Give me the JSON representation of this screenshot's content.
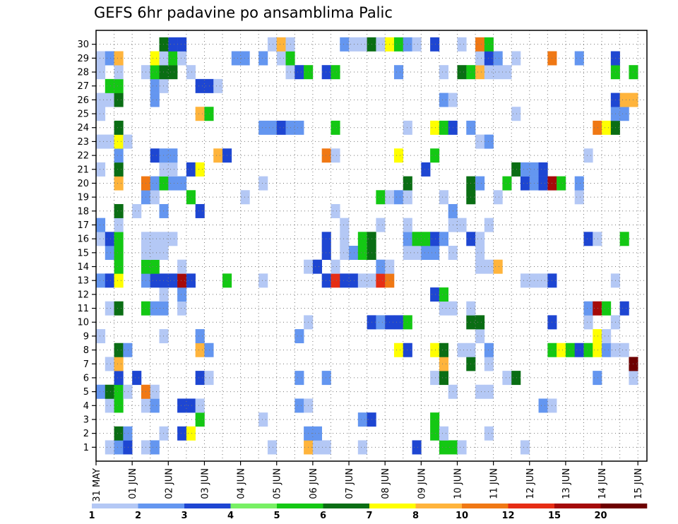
{
  "title": "GEFS 6hr padavine po ansamblima Palic",
  "chart_data": {
    "type": "heatmap",
    "title": "GEFS 6hr padavine po ansamblima Palic",
    "xlabel": "",
    "ylabel": "",
    "x_tick_labels": [
      "31 MAY",
      "01 JUN",
      "02 JUN",
      "03 JUN",
      "04 JUN",
      "05 JUN",
      "06 JUN",
      "07 JUN",
      "08 JUN",
      "09 JUN",
      "10 JUN",
      "11 JUN",
      "12 JUN",
      "13 JUN",
      "14 JUN",
      "15 JUN"
    ],
    "y_tick_labels": [
      "1",
      "2",
      "3",
      "4",
      "5",
      "6",
      "7",
      "8",
      "9",
      "10",
      "11",
      "12",
      "13",
      "14",
      "15",
      "16",
      "17",
      "18",
      "19",
      "20",
      "21",
      "22",
      "23",
      "24",
      "25",
      "26",
      "27",
      "28",
      "29",
      "30"
    ],
    "ensemble_members": 30,
    "time_steps": 61,
    "grid": true,
    "colorbar": {
      "labels": [
        "1",
        "2",
        "3",
        "4",
        "5",
        "6",
        "7",
        "8",
        "10",
        "12",
        "15",
        "20"
      ],
      "colors": [
        "#b4c8f5",
        "#6496f0",
        "#1e46d2",
        "#78f064",
        "#14c814",
        "#0a6e14",
        "#ffff00",
        "#ffb43c",
        "#f07814",
        "#e62d14",
        "#a50a0a",
        "#6e0000"
      ]
    },
    "cells": [
      [
        0,
        1,
        1
      ],
      [
        0,
        2,
        2
      ],
      [
        0,
        3,
        3
      ],
      [
        0,
        5,
        1
      ],
      [
        0,
        6,
        2
      ],
      [
        0,
        19,
        1
      ],
      [
        0,
        23,
        8
      ],
      [
        0,
        24,
        1
      ],
      [
        0,
        25,
        1
      ],
      [
        0,
        29,
        1
      ],
      [
        0,
        35,
        3
      ],
      [
        0,
        38,
        5
      ],
      [
        0,
        39,
        5
      ],
      [
        0,
        40,
        1
      ],
      [
        0,
        47,
        1
      ],
      [
        1,
        2,
        6
      ],
      [
        1,
        3,
        2
      ],
      [
        1,
        7,
        1
      ],
      [
        1,
        9,
        3
      ],
      [
        1,
        10,
        7
      ],
      [
        1,
        23,
        2
      ],
      [
        1,
        24,
        2
      ],
      [
        1,
        37,
        5
      ],
      [
        1,
        38,
        1
      ],
      [
        1,
        43,
        1
      ],
      [
        2,
        11,
        5
      ],
      [
        2,
        18,
        1
      ],
      [
        2,
        29,
        2
      ],
      [
        2,
        30,
        3
      ],
      [
        2,
        37,
        5
      ],
      [
        3,
        1,
        1
      ],
      [
        3,
        2,
        5
      ],
      [
        3,
        5,
        1
      ],
      [
        3,
        6,
        2
      ],
      [
        3,
        9,
        3
      ],
      [
        3,
        10,
        3
      ],
      [
        3,
        11,
        1
      ],
      [
        3,
        22,
        2
      ],
      [
        3,
        23,
        1
      ],
      [
        3,
        49,
        2
      ],
      [
        3,
        50,
        1
      ],
      [
        4,
        0,
        2
      ],
      [
        4,
        1,
        6
      ],
      [
        4,
        2,
        5
      ],
      [
        4,
        3,
        1
      ],
      [
        4,
        5,
        10
      ],
      [
        4,
        6,
        1
      ],
      [
        4,
        39,
        1
      ],
      [
        4,
        42,
        1
      ],
      [
        4,
        43,
        1
      ],
      [
        5,
        2,
        3
      ],
      [
        5,
        4,
        3
      ],
      [
        5,
        11,
        3
      ],
      [
        5,
        12,
        1
      ],
      [
        5,
        22,
        2
      ],
      [
        5,
        25,
        2
      ],
      [
        5,
        37,
        1
      ],
      [
        5,
        38,
        6
      ],
      [
        5,
        45,
        1
      ],
      [
        5,
        46,
        6
      ],
      [
        5,
        55,
        2
      ],
      [
        5,
        59,
        1
      ],
      [
        6,
        1,
        1
      ],
      [
        6,
        2,
        9
      ],
      [
        6,
        38,
        9
      ],
      [
        6,
        41,
        6
      ],
      [
        6,
        43,
        1
      ],
      [
        6,
        59,
        20
      ],
      [
        7,
        2,
        6
      ],
      [
        7,
        3,
        2
      ],
      [
        7,
        11,
        9
      ],
      [
        7,
        12,
        2
      ],
      [
        7,
        33,
        7
      ],
      [
        7,
        34,
        3
      ],
      [
        7,
        37,
        7
      ],
      [
        7,
        38,
        6
      ],
      [
        7,
        40,
        1
      ],
      [
        7,
        41,
        1
      ],
      [
        7,
        43,
        2
      ],
      [
        7,
        50,
        5
      ],
      [
        7,
        51,
        7
      ],
      [
        7,
        52,
        5
      ],
      [
        7,
        53,
        3
      ],
      [
        7,
        54,
        5
      ],
      [
        7,
        55,
        7
      ],
      [
        7,
        56,
        2
      ],
      [
        7,
        57,
        1
      ],
      [
        7,
        58,
        1
      ],
      [
        8,
        0,
        1
      ],
      [
        8,
        7,
        1
      ],
      [
        8,
        11,
        2
      ],
      [
        8,
        22,
        2
      ],
      [
        8,
        42,
        1
      ],
      [
        8,
        55,
        7
      ],
      [
        8,
        56,
        1
      ],
      [
        9,
        23,
        1
      ],
      [
        9,
        30,
        3
      ],
      [
        9,
        31,
        2
      ],
      [
        9,
        32,
        3
      ],
      [
        9,
        33,
        3
      ],
      [
        9,
        34,
        5
      ],
      [
        9,
        41,
        6
      ],
      [
        9,
        42,
        6
      ],
      [
        9,
        50,
        3
      ],
      [
        9,
        54,
        1
      ],
      [
        9,
        57,
        1
      ],
      [
        10,
        1,
        1
      ],
      [
        10,
        2,
        6
      ],
      [
        10,
        5,
        5
      ],
      [
        10,
        6,
        2
      ],
      [
        10,
        7,
        2
      ],
      [
        10,
        9,
        1
      ],
      [
        10,
        38,
        1
      ],
      [
        10,
        39,
        1
      ],
      [
        10,
        41,
        1
      ],
      [
        10,
        54,
        2
      ],
      [
        10,
        55,
        15
      ],
      [
        10,
        56,
        5
      ],
      [
        10,
        58,
        3
      ],
      [
        11,
        7,
        1
      ],
      [
        11,
        9,
        2
      ],
      [
        11,
        37,
        3
      ],
      [
        11,
        38,
        5
      ],
      [
        12,
        0,
        2
      ],
      [
        12,
        1,
        3
      ],
      [
        12,
        2,
        7
      ],
      [
        12,
        5,
        2
      ],
      [
        12,
        6,
        3
      ],
      [
        12,
        7,
        3
      ],
      [
        12,
        8,
        3
      ],
      [
        12,
        9,
        15
      ],
      [
        12,
        10,
        3
      ],
      [
        12,
        14,
        5
      ],
      [
        12,
        18,
        1
      ],
      [
        12,
        25,
        3
      ],
      [
        12,
        26,
        12
      ],
      [
        12,
        27,
        3
      ],
      [
        12,
        28,
        3
      ],
      [
        12,
        29,
        1
      ],
      [
        12,
        30,
        1
      ],
      [
        12,
        31,
        12
      ],
      [
        12,
        32,
        10
      ],
      [
        12,
        47,
        1
      ],
      [
        12,
        48,
        1
      ],
      [
        12,
        49,
        1
      ],
      [
        12,
        50,
        3
      ],
      [
        12,
        57,
        1
      ],
      [
        13,
        2,
        5
      ],
      [
        13,
        5,
        5
      ],
      [
        13,
        6,
        5
      ],
      [
        13,
        9,
        1
      ],
      [
        13,
        23,
        1
      ],
      [
        13,
        24,
        3
      ],
      [
        13,
        26,
        1
      ],
      [
        13,
        31,
        2
      ],
      [
        13,
        32,
        1
      ],
      [
        13,
        42,
        1
      ],
      [
        13,
        43,
        1
      ],
      [
        13,
        44,
        8
      ],
      [
        14,
        1,
        2
      ],
      [
        14,
        2,
        5
      ],
      [
        14,
        5,
        1
      ],
      [
        14,
        6,
        1
      ],
      [
        14,
        7,
        1
      ],
      [
        14,
        25,
        3
      ],
      [
        14,
        27,
        1
      ],
      [
        14,
        28,
        2
      ],
      [
        14,
        29,
        5
      ],
      [
        14,
        30,
        6
      ],
      [
        14,
        34,
        1
      ],
      [
        14,
        35,
        1
      ],
      [
        14,
        36,
        2
      ],
      [
        14,
        37,
        2
      ],
      [
        14,
        39,
        1
      ],
      [
        14,
        42,
        1
      ],
      [
        15,
        0,
        1
      ],
      [
        15,
        1,
        3
      ],
      [
        15,
        2,
        5
      ],
      [
        15,
        5,
        1
      ],
      [
        15,
        6,
        1
      ],
      [
        15,
        7,
        1
      ],
      [
        15,
        8,
        1
      ],
      [
        15,
        25,
        3
      ],
      [
        15,
        27,
        1
      ],
      [
        15,
        29,
        5
      ],
      [
        15,
        30,
        6
      ],
      [
        15,
        34,
        2
      ],
      [
        15,
        35,
        5
      ],
      [
        15,
        36,
        5
      ],
      [
        15,
        37,
        3
      ],
      [
        15,
        38,
        2
      ],
      [
        15,
        41,
        3
      ],
      [
        15,
        42,
        1
      ],
      [
        15,
        54,
        3
      ],
      [
        15,
        55,
        1
      ],
      [
        15,
        58,
        5
      ],
      [
        16,
        0,
        2
      ],
      [
        16,
        2,
        1
      ],
      [
        16,
        27,
        1
      ],
      [
        16,
        31,
        1
      ],
      [
        16,
        34,
        1
      ],
      [
        16,
        39,
        1
      ],
      [
        16,
        40,
        1
      ],
      [
        16,
        43,
        1
      ],
      [
        17,
        2,
        6
      ],
      [
        17,
        4,
        1
      ],
      [
        17,
        7,
        2
      ],
      [
        17,
        11,
        3
      ],
      [
        17,
        26,
        1
      ],
      [
        17,
        39,
        2
      ],
      [
        18,
        5,
        2
      ],
      [
        18,
        6,
        1
      ],
      [
        18,
        10,
        5
      ],
      [
        18,
        16,
        1
      ],
      [
        18,
        31,
        5
      ],
      [
        18,
        32,
        1
      ],
      [
        18,
        33,
        2
      ],
      [
        18,
        34,
        1
      ],
      [
        18,
        38,
        1
      ],
      [
        18,
        41,
        6
      ],
      [
        18,
        44,
        1
      ],
      [
        18,
        53,
        1
      ],
      [
        19,
        2,
        9
      ],
      [
        19,
        5,
        10
      ],
      [
        19,
        6,
        2
      ],
      [
        19,
        7,
        5
      ],
      [
        19,
        8,
        2
      ],
      [
        19,
        9,
        2
      ],
      [
        19,
        18,
        1
      ],
      [
        19,
        34,
        6
      ],
      [
        19,
        41,
        6
      ],
      [
        19,
        42,
        2
      ],
      [
        19,
        45,
        5
      ],
      [
        19,
        47,
        3
      ],
      [
        19,
        48,
        2
      ],
      [
        19,
        49,
        3
      ],
      [
        19,
        50,
        15
      ],
      [
        19,
        51,
        5
      ],
      [
        19,
        53,
        2
      ],
      [
        20,
        0,
        1
      ],
      [
        20,
        2,
        6
      ],
      [
        20,
        7,
        1
      ],
      [
        20,
        8,
        1
      ],
      [
        20,
        10,
        3
      ],
      [
        20,
        11,
        7
      ],
      [
        20,
        36,
        3
      ],
      [
        20,
        46,
        6
      ],
      [
        20,
        47,
        2
      ],
      [
        20,
        48,
        2
      ],
      [
        20,
        49,
        3
      ],
      [
        21,
        2,
        2
      ],
      [
        21,
        6,
        3
      ],
      [
        21,
        7,
        2
      ],
      [
        21,
        8,
        2
      ],
      [
        21,
        13,
        8
      ],
      [
        21,
        14,
        3
      ],
      [
        21,
        25,
        10
      ],
      [
        21,
        26,
        1
      ],
      [
        21,
        33,
        7
      ],
      [
        21,
        37,
        5
      ],
      [
        21,
        54,
        1
      ],
      [
        22,
        0,
        1
      ],
      [
        22,
        1,
        1
      ],
      [
        22,
        2,
        7
      ],
      [
        22,
        3,
        1
      ],
      [
        22,
        42,
        1
      ],
      [
        22,
        43,
        2
      ],
      [
        23,
        2,
        6
      ],
      [
        23,
        18,
        2
      ],
      [
        23,
        19,
        2
      ],
      [
        23,
        20,
        3
      ],
      [
        23,
        21,
        2
      ],
      [
        23,
        22,
        2
      ],
      [
        23,
        26,
        5
      ],
      [
        23,
        34,
        1
      ],
      [
        23,
        37,
        7
      ],
      [
        23,
        38,
        5
      ],
      [
        23,
        39,
        3
      ],
      [
        23,
        41,
        2
      ],
      [
        23,
        55,
        10
      ],
      [
        23,
        56,
        7
      ],
      [
        23,
        57,
        6
      ],
      [
        24,
        0,
        1
      ],
      [
        24,
        11,
        8
      ],
      [
        24,
        12,
        5
      ],
      [
        24,
        46,
        1
      ],
      [
        24,
        57,
        2
      ],
      [
        24,
        58,
        2
      ],
      [
        25,
        0,
        1
      ],
      [
        25,
        1,
        1
      ],
      [
        25,
        2,
        6
      ],
      [
        25,
        6,
        2
      ],
      [
        25,
        38,
        2
      ],
      [
        25,
        39,
        1
      ],
      [
        25,
        57,
        3
      ],
      [
        25,
        58,
        8
      ],
      [
        25,
        59,
        9
      ],
      [
        26,
        1,
        5
      ],
      [
        26,
        2,
        5
      ],
      [
        26,
        6,
        2
      ],
      [
        26,
        7,
        1
      ],
      [
        26,
        11,
        3
      ],
      [
        26,
        12,
        3
      ],
      [
        26,
        13,
        1
      ],
      [
        27,
        0,
        1
      ],
      [
        27,
        2,
        1
      ],
      [
        27,
        5,
        1
      ],
      [
        27,
        6,
        5
      ],
      [
        27,
        7,
        6
      ],
      [
        27,
        8,
        6
      ],
      [
        27,
        10,
        1
      ],
      [
        27,
        21,
        1
      ],
      [
        27,
        22,
        3
      ],
      [
        27,
        23,
        5
      ],
      [
        27,
        25,
        3
      ],
      [
        27,
        26,
        5
      ],
      [
        27,
        33,
        2
      ],
      [
        27,
        38,
        1
      ],
      [
        27,
        40,
        6
      ],
      [
        27,
        41,
        5
      ],
      [
        27,
        42,
        9
      ],
      [
        27,
        43,
        1
      ],
      [
        27,
        44,
        1
      ],
      [
        27,
        45,
        1
      ],
      [
        27,
        57,
        5
      ],
      [
        27,
        59,
        5
      ],
      [
        28,
        0,
        1
      ],
      [
        28,
        1,
        2
      ],
      [
        28,
        2,
        9
      ],
      [
        28,
        6,
        7
      ],
      [
        28,
        7,
        1
      ],
      [
        28,
        8,
        5
      ],
      [
        28,
        9,
        1
      ],
      [
        28,
        15,
        2
      ],
      [
        28,
        16,
        2
      ],
      [
        28,
        18,
        2
      ],
      [
        28,
        20,
        1
      ],
      [
        28,
        21,
        5
      ],
      [
        28,
        42,
        1
      ],
      [
        28,
        43,
        3
      ],
      [
        28,
        44,
        2
      ],
      [
        28,
        46,
        1
      ],
      [
        28,
        50,
        10
      ],
      [
        28,
        53,
        2
      ],
      [
        28,
        57,
        3
      ],
      [
        29,
        7,
        6
      ],
      [
        29,
        8,
        3
      ],
      [
        29,
        9,
        3
      ],
      [
        29,
        19,
        1
      ],
      [
        29,
        20,
        8
      ],
      [
        29,
        21,
        1
      ],
      [
        29,
        27,
        2
      ],
      [
        29,
        28,
        1
      ],
      [
        29,
        29,
        1
      ],
      [
        29,
        30,
        6
      ],
      [
        29,
        31,
        1
      ],
      [
        29,
        32,
        7
      ],
      [
        29,
        33,
        5
      ],
      [
        29,
        34,
        2
      ],
      [
        29,
        35,
        1
      ],
      [
        29,
        37,
        3
      ],
      [
        29,
        40,
        1
      ],
      [
        29,
        42,
        10
      ],
      [
        29,
        43,
        5
      ]
    ]
  }
}
